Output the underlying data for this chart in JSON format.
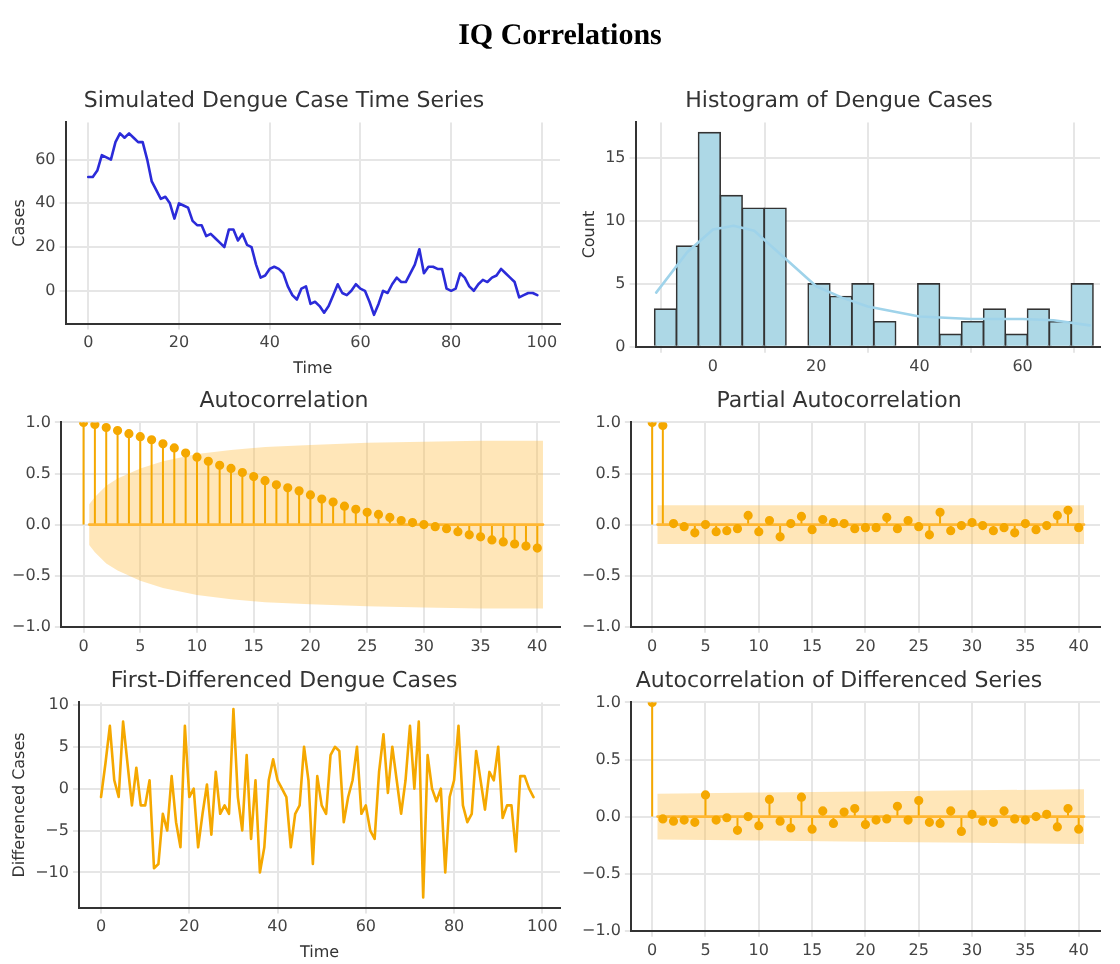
{
  "chart_data": [
    {
      "type": "other",
      "title": "IQ Correlations"
    },
    {
      "type": "line",
      "title": "Simulated Dengue Case Time Series",
      "xlabel": "Time",
      "ylabel": "Cases",
      "xlim": [
        -5,
        104
      ],
      "ylim": [
        -15,
        77
      ],
      "xticks": [
        0,
        20,
        40,
        60,
        80,
        100
      ],
      "yticks": [
        0,
        20,
        40,
        60
      ],
      "grid": true,
      "series": [
        {
          "color": "#2b2bd9",
          "x": [
            0,
            1,
            2,
            3,
            4,
            5,
            6,
            7,
            8,
            9,
            10,
            11,
            12,
            13,
            14,
            15,
            16,
            17,
            18,
            19,
            20,
            21,
            22,
            23,
            24,
            25,
            26,
            27,
            28,
            29,
            30,
            31,
            32,
            33,
            34,
            35,
            36,
            37,
            38,
            39,
            40,
            41,
            42,
            43,
            44,
            45,
            46,
            47,
            48,
            49,
            50,
            51,
            52,
            53,
            54,
            55,
            56,
            57,
            58,
            59,
            60,
            61,
            62,
            63,
            64,
            65,
            66,
            67,
            68,
            69,
            70,
            71,
            72,
            73,
            74,
            75,
            76,
            77,
            78,
            79,
            80,
            81,
            82,
            83,
            84,
            85,
            86,
            87,
            88,
            89,
            90,
            91,
            92,
            93,
            94,
            95,
            96,
            97,
            98,
            99
          ],
          "values": [
            52,
            52,
            55,
            62,
            61,
            60,
            68,
            72,
            70,
            72,
            70,
            68,
            68,
            60,
            50,
            46,
            42,
            43,
            40,
            33,
            40,
            39,
            38,
            32,
            30,
            30,
            25,
            26,
            24,
            22,
            20,
            28,
            28,
            23,
            26,
            21,
            20,
            12,
            6,
            7,
            10,
            11,
            10,
            8,
            2,
            -2,
            -4,
            1,
            2,
            -6,
            -5,
            -7,
            -10,
            -7,
            -2,
            3,
            -1,
            -2,
            0,
            3,
            1,
            0,
            -5,
            -11,
            -6,
            0,
            -1,
            3,
            6,
            4,
            4,
            8,
            12,
            19,
            8,
            11,
            11,
            10,
            10,
            1,
            0,
            1,
            8,
            6,
            2,
            0,
            3,
            5,
            4,
            6,
            7,
            10,
            8,
            6,
            4,
            -3,
            -2,
            -1,
            -1,
            -2
          ]
        }
      ]
    },
    {
      "type": "histogram",
      "title": "Histogram of Dengue Cases",
      "ylabel": "Count",
      "xlim": [
        -15,
        75
      ],
      "ylim": [
        0,
        17.8
      ],
      "xticks": [
        0,
        20,
        40,
        60
      ],
      "yticks": [
        0,
        5,
        10,
        15
      ],
      "grid": true,
      "bins": [
        -11.3,
        -7.1,
        -2.8,
        1.4,
        5.7,
        9.9,
        14.2,
        18.4,
        22.7,
        26.9,
        31.2,
        35.4,
        39.7,
        43.9,
        48.2,
        52.4,
        56.7,
        60.9,
        65.2,
        69.4,
        73.7
      ],
      "series": [
        {
          "type": "histogram",
          "color": "#add8e6",
          "values": [
            3,
            8,
            17,
            12,
            11,
            11,
            0,
            5,
            4,
            5,
            2,
            0,
            5,
            1,
            2,
            3,
            1,
            3,
            2,
            5
          ]
        },
        {
          "type": "line",
          "color": "#9fd3ea",
          "x": [
            -11,
            -5,
            0,
            4,
            8,
            14,
            20,
            25,
            30,
            40,
            50,
            60,
            66,
            73
          ],
          "values": [
            4.3,
            7.5,
            9.3,
            9.6,
            9.2,
            7,
            4.8,
            3.9,
            3.2,
            2.4,
            2.2,
            2.2,
            2.1,
            1.7
          ]
        }
      ]
    },
    {
      "type": "lollipop",
      "title": "Autocorrelation",
      "xlim": [
        -2,
        42
      ],
      "ylim": [
        -1,
        1
      ],
      "xticks": [
        0,
        5,
        10,
        15,
        20,
        25,
        30,
        35,
        40
      ],
      "yticks": [
        {
          "value": -1,
          "label": "−1.0"
        },
        {
          "value": -0.5,
          "label": "−0.5"
        },
        {
          "value": 0,
          "label": "0.0"
        },
        {
          "value": 0.5,
          "label": "0.5"
        },
        {
          "value": 1,
          "label": "1.0"
        }
      ],
      "grid": true,
      "series": [
        {
          "type": "line",
          "color": "#ffb733",
          "x": [
            0.5,
            1,
            2,
            3,
            5,
            7,
            10,
            13,
            16,
            20,
            25,
            30,
            35,
            40.5
          ],
          "values": [
            0,
            0,
            0,
            0,
            0,
            0,
            0,
            0,
            0,
            0,
            0,
            0,
            0,
            0
          ],
          "upper": [
            0.2,
            0.27,
            0.38,
            0.45,
            0.55,
            0.62,
            0.69,
            0.73,
            0.76,
            0.78,
            0.8,
            0.81,
            0.82,
            0.82
          ],
          "lower": [
            -0.2,
            -0.27,
            -0.38,
            -0.45,
            -0.55,
            -0.62,
            -0.69,
            -0.73,
            -0.76,
            -0.78,
            -0.8,
            -0.81,
            -0.82,
            -0.82
          ]
        },
        {
          "type": "lollipop",
          "marker": "circle",
          "color": "#f5a800",
          "x": [
            0,
            1,
            2,
            3,
            4,
            5,
            6,
            7,
            8,
            9,
            10,
            11,
            12,
            13,
            14,
            15,
            16,
            17,
            18,
            19,
            20,
            21,
            22,
            23,
            24,
            25,
            26,
            27,
            28,
            29,
            30,
            31,
            32,
            33,
            34,
            35,
            36,
            37,
            38,
            39,
            40
          ],
          "values": [
            1.0,
            0.98,
            0.95,
            0.92,
            0.89,
            0.86,
            0.83,
            0.79,
            0.75,
            0.7,
            0.66,
            0.62,
            0.58,
            0.55,
            0.51,
            0.47,
            0.43,
            0.39,
            0.36,
            0.33,
            0.29,
            0.25,
            0.22,
            0.18,
            0.15,
            0.12,
            0.1,
            0.07,
            0.04,
            0.02,
            0,
            -0.02,
            -0.04,
            -0.07,
            -0.1,
            -0.12,
            -0.15,
            -0.17,
            -0.19,
            -0.21,
            -0.23
          ]
        }
      ]
    },
    {
      "type": "lollipop",
      "title": "Partial Autocorrelation",
      "xlim": [
        -2,
        42
      ],
      "ylim": [
        -1,
        1
      ],
      "xticks": [
        0,
        5,
        10,
        15,
        20,
        25,
        30,
        35,
        40
      ],
      "yticks": [
        {
          "value": -1,
          "label": "−1.0"
        },
        {
          "value": -0.5,
          "label": "−0.5"
        },
        {
          "value": 0,
          "label": "0.0"
        },
        {
          "value": 0.5,
          "label": "0.5"
        },
        {
          "value": 1,
          "label": "1.0"
        }
      ],
      "grid": true,
      "series": [
        {
          "type": "line",
          "color": "#ffb733",
          "x": [
            0.5,
            40.5
          ],
          "values": [
            0,
            0
          ],
          "upper": [
            0.19,
            0.19
          ],
          "lower": [
            -0.19,
            -0.19
          ]
        },
        {
          "type": "lollipop",
          "marker": "circle",
          "color": "#f5a800",
          "x": [
            0,
            1,
            2,
            3,
            4,
            5,
            6,
            7,
            8,
            9,
            10,
            11,
            12,
            13,
            14,
            15,
            16,
            17,
            18,
            19,
            20,
            21,
            22,
            23,
            24,
            25,
            26,
            27,
            28,
            29,
            30,
            31,
            32,
            33,
            34,
            35,
            36,
            37,
            38,
            39,
            40
          ],
          "values": [
            1.0,
            0.97,
            0.01,
            -0.02,
            -0.08,
            0.0,
            -0.07,
            -0.06,
            -0.04,
            0.09,
            -0.07,
            0.04,
            -0.12,
            0.01,
            0.08,
            -0.05,
            0.05,
            0.02,
            0.01,
            -0.04,
            -0.03,
            -0.03,
            0.07,
            -0.04,
            0.04,
            -0.02,
            -0.1,
            0.12,
            -0.06,
            -0.01,
            0.02,
            -0.01,
            -0.06,
            -0.03,
            -0.08,
            0.01,
            -0.05,
            -0.01,
            0.09,
            0.14,
            -0.03
          ]
        }
      ]
    },
    {
      "type": "line",
      "title": "First-Differenced Dengue Cases",
      "xlabel": "Time",
      "ylabel": "Differenced Cases",
      "xlim": [
        -5,
        104
      ],
      "ylim": [
        -14.2,
        10.3
      ],
      "xticks": [
        0,
        20,
        40,
        60,
        80,
        100
      ],
      "yticks": [
        {
          "value": -10,
          "label": "−10"
        },
        {
          "value": -5,
          "label": "−5"
        },
        0,
        5,
        10
      ],
      "grid": true,
      "series": [
        {
          "color": "#f5a800",
          "x": [
            0,
            1,
            2,
            3,
            4,
            5,
            6,
            7,
            8,
            9,
            10,
            11,
            12,
            13,
            14,
            15,
            16,
            17,
            18,
            19,
            20,
            21,
            22,
            23,
            24,
            25,
            26,
            27,
            28,
            29,
            30,
            31,
            32,
            33,
            34,
            35,
            36,
            37,
            38,
            39,
            40,
            41,
            42,
            43,
            44,
            45,
            46,
            47,
            48,
            49,
            50,
            51,
            52,
            53,
            54,
            55,
            56,
            57,
            58,
            59,
            60,
            61,
            62,
            63,
            64,
            65,
            66,
            67,
            68,
            69,
            70,
            71,
            72,
            73,
            74,
            75,
            76,
            77,
            78,
            79,
            80,
            81,
            82,
            83,
            84,
            85,
            86,
            87,
            88,
            89,
            90,
            91,
            92,
            93,
            94,
            95,
            96,
            97,
            98
          ],
          "values": [
            -1,
            3,
            7.5,
            1,
            -1,
            8,
            3,
            -2,
            2.5,
            -2,
            -2,
            1,
            -9.5,
            -9,
            -3,
            -5,
            1.5,
            -4,
            -7,
            7.5,
            -1,
            0,
            -7,
            -3,
            0.5,
            -5.5,
            2,
            -3,
            -2,
            -3,
            9.5,
            -1,
            -5,
            4,
            -6,
            1,
            -10,
            -7,
            1,
            3.5,
            1,
            0,
            -1,
            -7,
            -3,
            -2,
            5,
            1,
            -9,
            1.5,
            -2,
            -3,
            4,
            5,
            4.5,
            -4,
            -1,
            1,
            5,
            -3,
            -2,
            -5,
            -6,
            2,
            6.5,
            -0.5,
            5,
            1,
            -3,
            1,
            7.5,
            0,
            8,
            -13,
            4,
            0,
            -1.5,
            0,
            -10,
            -1,
            1,
            7.5,
            -2,
            -4,
            -3,
            4.5,
            1,
            -2.5,
            2,
            1,
            5,
            -3.5,
            -2,
            -2,
            -7.5,
            1.5,
            1.5,
            0,
            -1
          ]
        }
      ]
    },
    {
      "type": "lollipop",
      "title": "Autocorrelation of Differenced Series",
      "xlim": [
        -2,
        42
      ],
      "ylim": [
        -1,
        1
      ],
      "xticks": [
        0,
        5,
        10,
        15,
        20,
        25,
        30,
        35,
        40
      ],
      "yticks": [
        {
          "value": -1,
          "label": "−1.0"
        },
        {
          "value": -0.5,
          "label": "−0.5"
        },
        {
          "value": 0,
          "label": "0.0"
        },
        {
          "value": 0.5,
          "label": "0.5"
        },
        {
          "value": 1,
          "label": "1.0"
        }
      ],
      "grid": true,
      "series": [
        {
          "type": "line",
          "color": "#ffb733",
          "x": [
            0.5,
            10,
            20,
            30,
            40.5
          ],
          "values": [
            0,
            0,
            0,
            0,
            0
          ],
          "upper": [
            0.2,
            0.21,
            0.22,
            0.23,
            0.24
          ],
          "lower": [
            -0.2,
            -0.21,
            -0.22,
            -0.23,
            -0.24
          ]
        },
        {
          "type": "lollipop",
          "marker": "circle",
          "color": "#f5a800",
          "x": [
            0,
            1,
            2,
            3,
            4,
            5,
            6,
            7,
            8,
            9,
            10,
            11,
            12,
            13,
            14,
            15,
            16,
            17,
            18,
            19,
            20,
            21,
            22,
            23,
            24,
            25,
            26,
            27,
            28,
            29,
            30,
            31,
            32,
            33,
            34,
            35,
            36,
            37,
            38,
            39,
            40
          ],
          "values": [
            1.0,
            -0.02,
            -0.04,
            -0.03,
            -0.05,
            0.19,
            -0.03,
            -0.01,
            -0.12,
            0.0,
            -0.08,
            0.15,
            -0.04,
            -0.1,
            0.17,
            -0.11,
            0.05,
            -0.06,
            0.04,
            0.07,
            -0.07,
            -0.03,
            -0.02,
            0.09,
            -0.03,
            0.14,
            -0.05,
            -0.06,
            0.05,
            -0.13,
            0.02,
            -0.04,
            -0.05,
            0.05,
            -0.02,
            -0.03,
            0.0,
            0.02,
            -0.09,
            0.07,
            -0.11
          ]
        }
      ]
    }
  ]
}
